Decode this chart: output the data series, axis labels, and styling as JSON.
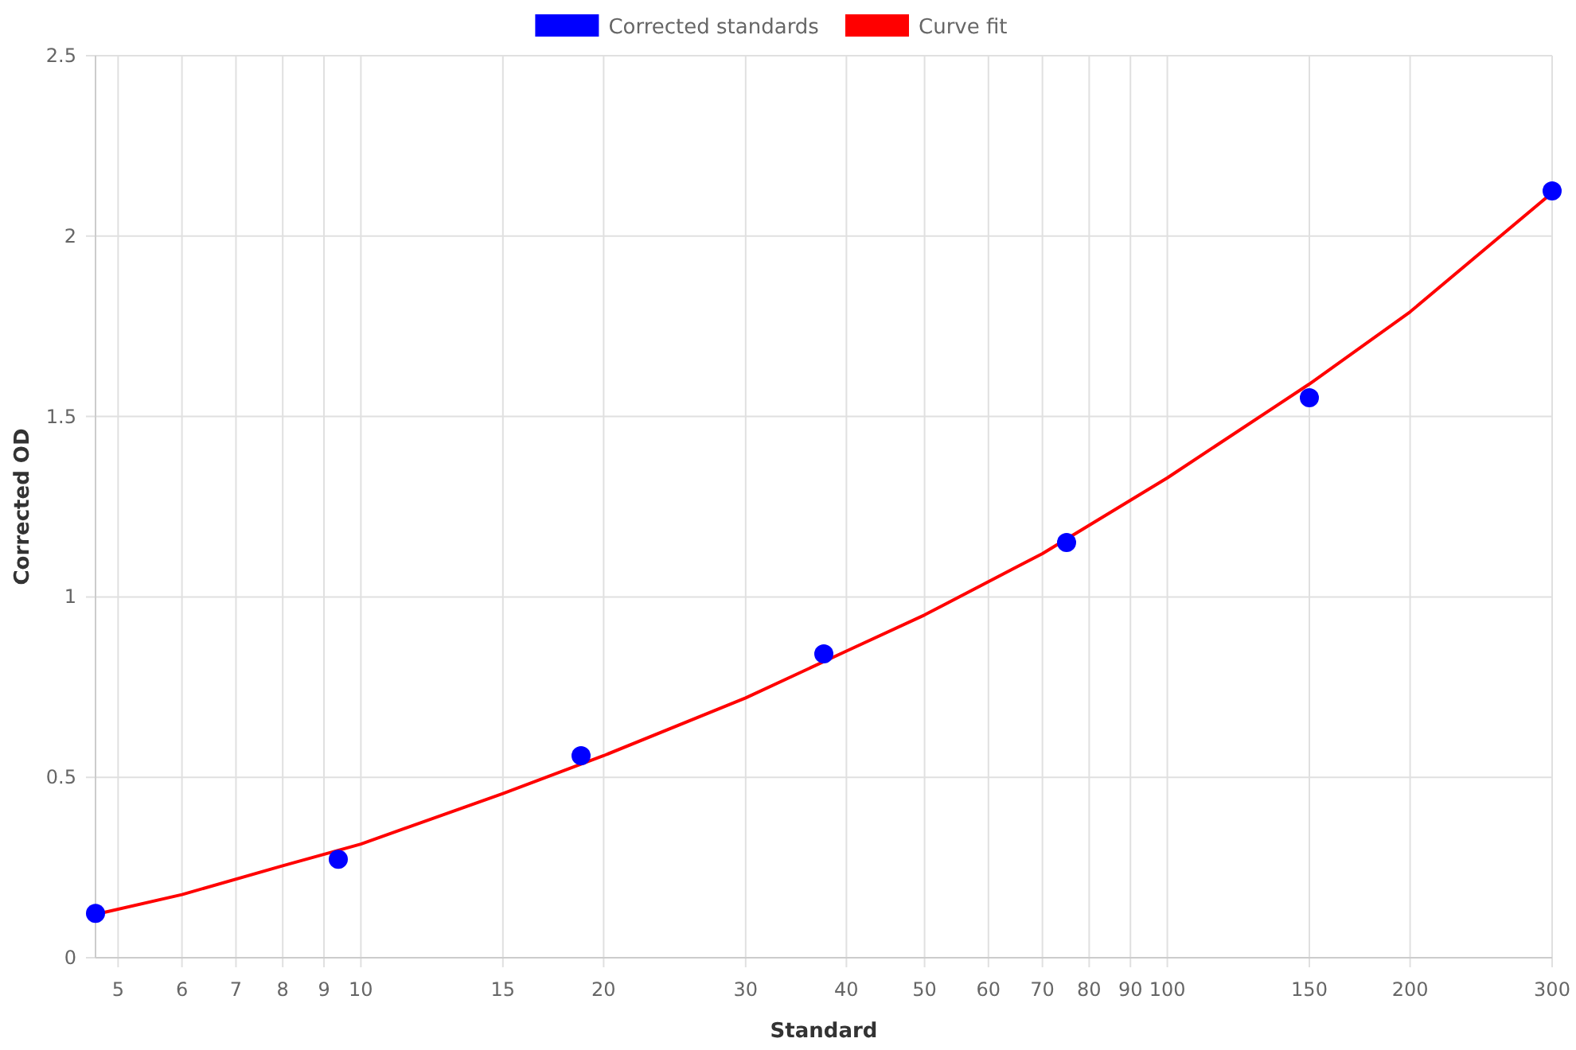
{
  "chart_data": {
    "type": "scatter",
    "xlabel": "Standard",
    "ylabel": "Corrected OD",
    "log": "x",
    "grid": true,
    "legend": "top",
    "xlim": [
      4.6875,
      300
    ],
    "xticks": [
      5,
      6,
      7,
      8,
      9,
      10,
      15,
      20,
      30,
      40,
      50,
      60,
      70,
      80,
      90,
      100,
      150,
      200,
      300
    ],
    "ylim": [
      0,
      2.5
    ],
    "yticks": [
      0,
      0.5,
      1,
      1.5,
      2,
      2.5
    ],
    "series": [
      {
        "name": "Corrected standards",
        "marker": "circle",
        "color": "#0000ff",
        "x": [
          4.6875,
          9.375,
          18.75,
          37.5,
          75,
          150,
          300
        ],
        "values": [
          0.123,
          0.273,
          0.56,
          0.842,
          1.151,
          1.552,
          2.125
        ]
      },
      {
        "name": "Curve fit",
        "type": "line",
        "marker": "none",
        "line_style": "solid",
        "color": "#ff0000",
        "x": [
          4.6875,
          6,
          8,
          10,
          15,
          20,
          30,
          40,
          50,
          70,
          100,
          150,
          200,
          300
        ],
        "values": [
          0.12,
          0.175,
          0.255,
          0.315,
          0.455,
          0.56,
          0.72,
          0.85,
          0.95,
          1.12,
          1.33,
          1.59,
          1.79,
          2.12
        ]
      }
    ]
  }
}
